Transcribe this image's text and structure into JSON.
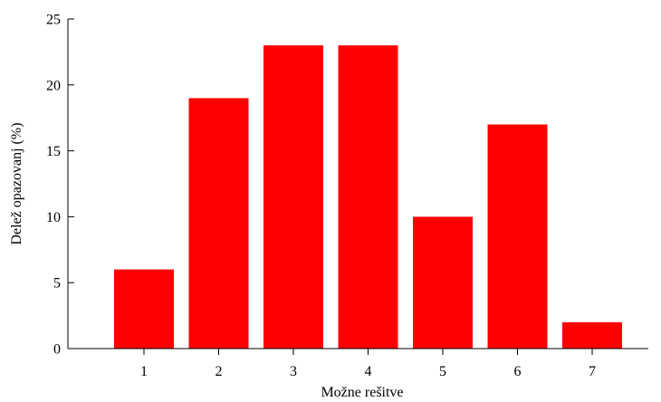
{
  "chart_data": {
    "type": "bar",
    "categories": [
      "1",
      "2",
      "3",
      "4",
      "5",
      "6",
      "7"
    ],
    "values": [
      6,
      19,
      23,
      23,
      10,
      17,
      2
    ],
    "title": "",
    "xlabel": "Možne rešitve",
    "ylabel": "Delež opazovanj (%)",
    "ylim": [
      0,
      25
    ],
    "yticks": [
      "0",
      "5",
      "10",
      "15",
      "20",
      "25"
    ],
    "grid": false,
    "legend": "none",
    "bar_color": "#ff0000"
  }
}
